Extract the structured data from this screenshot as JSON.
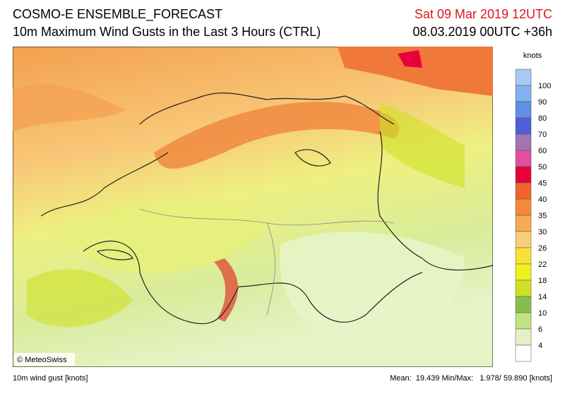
{
  "header": {
    "title": "COSMO-E ENSEMBLE_FORECAST",
    "subtitle": "10m Maximum Wind Gusts in the Last 3 Hours (CTRL)",
    "valid_time": "Sat 09 Mar 2019 12UTC",
    "run_time": "08.03.2019 00UTC +36h"
  },
  "map": {
    "credit": "© MeteoSwiss"
  },
  "legend": {
    "title": "knots",
    "labels": [
      "100",
      "90",
      "80",
      "70",
      "60",
      "50",
      "45",
      "40",
      "35",
      "30",
      "26",
      "22",
      "18",
      "14",
      "10",
      "6",
      "4"
    ],
    "colors": [
      "#a9c9f2",
      "#82b2f0",
      "#5f8fe6",
      "#4f5fd8",
      "#a473b4",
      "#e0509e",
      "#e8003c",
      "#f0642e",
      "#f38a3a",
      "#f8aa52",
      "#f9cd7c",
      "#f8e236",
      "#eef21e",
      "#cfe124",
      "#86be4e",
      "#c3e183",
      "#e3f1c4",
      "#ffffff"
    ]
  },
  "footer": {
    "variable": "10m wind gust [knots]",
    "stats": "Mean:  19.439 Min/Max:   1.978/ 59.890 [knots]"
  }
}
